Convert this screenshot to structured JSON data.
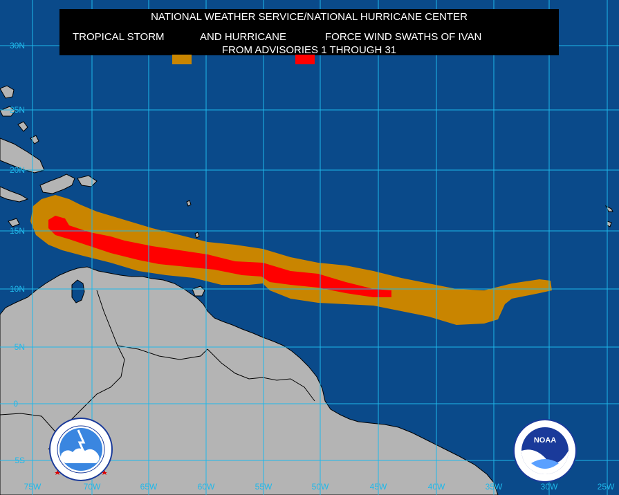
{
  "title": {
    "line1": "NATIONAL WEATHER SERVICE/NATIONAL HURRICANE CENTER",
    "label_ts": "TROPICAL STORM",
    "label_and": "AND HURRICANE",
    "label_force": "FORCE WIND SWATHS OF IVAN",
    "line3": "FROM ADVISORIES 1 THROUGH 31"
  },
  "legend": {
    "tropical_storm_color": "#c98500",
    "hurricane_color": "#ff0000"
  },
  "colors": {
    "ocean": "#0a4a8a",
    "land": "#b4b4b4",
    "grid": "#1fb8ea"
  },
  "lat_labels": [
    "30N",
    "25N",
    "20N",
    "15N",
    "10N",
    "5N",
    "0",
    "5S"
  ],
  "lon_labels": [
    "75W",
    "70W",
    "65W",
    "60W",
    "55W",
    "50W",
    "45W",
    "40W",
    "35W",
    "30W",
    "25W"
  ],
  "logos": {
    "nws": "NATIONAL WEATHER SERVICE",
    "noaa": "NOAA"
  }
}
